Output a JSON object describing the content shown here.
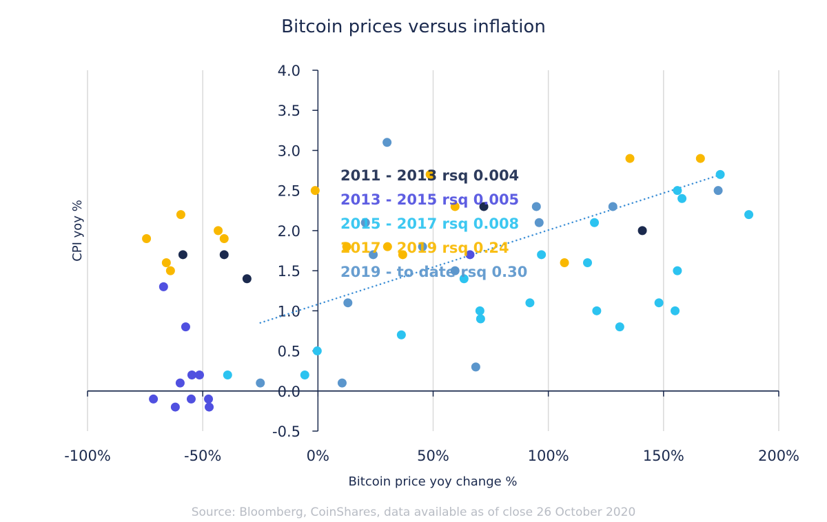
{
  "chart_data": {
    "type": "scatter",
    "title": "Bitcoin prices versus inflation",
    "xlabel": "Bitcoin price yoy change %",
    "ylabel": "CPI yoy %",
    "source": "Source: Bloomberg, CoinShares, data available as of close 26 October 2020",
    "xlim": [
      -100,
      200
    ],
    "ylim": [
      -0.5,
      4.0
    ],
    "x_ticks": [
      -100,
      -50,
      0,
      50,
      100,
      150,
      200
    ],
    "x_tick_labels": [
      "-100%",
      "-50%",
      "0%",
      "50%",
      "100%",
      "150%",
      "200%"
    ],
    "y_ticks": [
      -0.5,
      0,
      0.5,
      1,
      1.5,
      2,
      2.5,
      3,
      3.5,
      4
    ],
    "y_tick_labels": [
      "-0.5",
      "0.0",
      "0.5",
      "1.0",
      "1.5",
      "2.0",
      "2.5",
      "3.0",
      "3.5",
      "4.0"
    ],
    "grid": "vertical",
    "legend_placement": "center",
    "trendline": {
      "x": [
        -25,
        175
      ],
      "y": [
        0.85,
        2.7
      ],
      "color": "#3d8fd6"
    },
    "series": [
      {
        "name": "2011 - 2013 rsq 0.004",
        "color": "#1b2a4e",
        "points": [
          [
            -58.6,
            1.7
          ],
          [
            -40.7,
            1.7
          ],
          [
            -30.8,
            1.4
          ],
          [
            72,
            2.3
          ],
          [
            140.8,
            2.0
          ]
        ]
      },
      {
        "name": "2013 - 2015 rsq 0.005",
        "color": "#5050e0",
        "points": [
          [
            -67,
            1.3
          ],
          [
            -57.4,
            0.8
          ],
          [
            -54.7,
            0.2
          ],
          [
            -51.4,
            0.2
          ],
          [
            -59.8,
            0.1
          ],
          [
            -71.4,
            -0.1
          ],
          [
            -55,
            -0.1
          ],
          [
            -47.5,
            -0.1
          ],
          [
            -61.9,
            -0.2
          ],
          [
            -47.2,
            -0.2
          ],
          [
            66,
            1.7
          ]
        ]
      },
      {
        "name": "2015 - 2017 rsq 0.008",
        "color": "#2cc3f0",
        "points": [
          [
            -39.2,
            0.2
          ],
          [
            -5.7,
            0.2
          ],
          [
            -0.3,
            0.5
          ],
          [
            36.2,
            0.7
          ],
          [
            63.4,
            1.4
          ],
          [
            70.3,
            1.0
          ],
          [
            70.6,
            0.9
          ],
          [
            92,
            1.1
          ],
          [
            97,
            1.7
          ],
          [
            117,
            1.6
          ],
          [
            120,
            2.1
          ],
          [
            121,
            1.0
          ],
          [
            131,
            0.8
          ],
          [
            148,
            1.1
          ],
          [
            155,
            1.0
          ],
          [
            156,
            1.5
          ],
          [
            156,
            2.5
          ],
          [
            158,
            2.4
          ],
          [
            174.6,
            2.7
          ],
          [
            187,
            2.2
          ]
        ]
      },
      {
        "name": "2017 - 2019 rsq 0.24",
        "color": "#f9b800",
        "points": [
          [
            -74.4,
            1.9
          ],
          [
            -59.5,
            2.2
          ],
          [
            -65.8,
            1.6
          ],
          [
            -64,
            1.5
          ],
          [
            -43.3,
            2.0
          ],
          [
            -40.7,
            1.9
          ],
          [
            -1.2,
            2.5
          ],
          [
            12.5,
            1.8
          ],
          [
            30.2,
            1.8
          ],
          [
            36.8,
            1.7
          ],
          [
            48.7,
            2.7
          ],
          [
            59.5,
            2.3
          ],
          [
            107,
            1.6
          ],
          [
            135.4,
            2.9
          ],
          [
            166,
            2.9
          ]
        ]
      },
      {
        "name": "2019 - to date rsq 0.30",
        "color": "#5b96cc",
        "points": [
          [
            -25,
            0.1
          ],
          [
            10.5,
            0.1
          ],
          [
            13,
            1.1
          ],
          [
            20.6,
            2.1
          ],
          [
            24,
            1.7
          ],
          [
            30,
            3.1
          ],
          [
            45.4,
            1.8
          ],
          [
            59.5,
            1.5
          ],
          [
            68.5,
            0.3
          ],
          [
            94.8,
            2.3
          ],
          [
            96,
            2.1
          ],
          [
            128,
            2.3
          ],
          [
            173.7,
            2.5
          ]
        ]
      }
    ]
  }
}
